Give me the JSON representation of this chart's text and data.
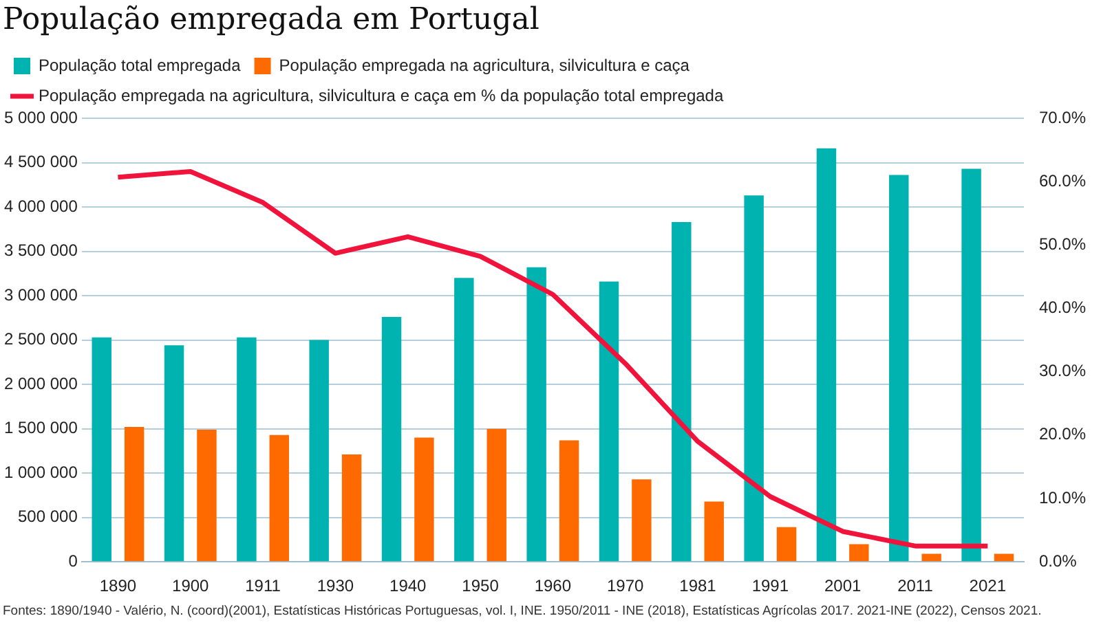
{
  "chart_data": {
    "type": "bar",
    "title": "População empregada em Portugal",
    "categories": [
      "1890",
      "1900",
      "1911",
      "1930",
      "1940",
      "1950",
      "1960",
      "1970",
      "1981",
      "1991",
      "2001",
      "2011",
      "2021"
    ],
    "series": [
      {
        "name": "População total empregada",
        "color": "#00b2b0",
        "values": [
          2530000,
          2440000,
          2530000,
          2500000,
          2760000,
          3200000,
          3320000,
          3160000,
          3830000,
          4130000,
          4660000,
          4360000,
          4430000
        ]
      },
      {
        "name": "População empregada na agricultura, silvicultura e caça",
        "color": "#ff6a00",
        "values": [
          1520000,
          1490000,
          1430000,
          1210000,
          1400000,
          1500000,
          1370000,
          930000,
          680000,
          390000,
          200000,
          90000,
          90000
        ]
      },
      {
        "name": "População empregada na agricultura, silvicultura e caça em % da população total empregada",
        "color": "#f0143c",
        "type": "line",
        "axis": "y2",
        "values": [
          60.7,
          61.6,
          56.7,
          48.7,
          51.3,
          48.2,
          42.2,
          31.3,
          19.0,
          10.3,
          4.8,
          2.5,
          2.5
        ]
      }
    ],
    "ylim": [
      0,
      5000000
    ],
    "yticks": [
      {
        "value": 0,
        "label": "0"
      },
      {
        "value": 500000,
        "label": "500 000"
      },
      {
        "value": 1000000,
        "label": "1 000 000"
      },
      {
        "value": 1500000,
        "label": "1 500 000"
      },
      {
        "value": 2000000,
        "label": "2 000 000"
      },
      {
        "value": 2500000,
        "label": "2 500 000"
      },
      {
        "value": 3000000,
        "label": "3 000 000"
      },
      {
        "value": 3500000,
        "label": "3 500 000"
      },
      {
        "value": 4000000,
        "label": "4 000 000"
      },
      {
        "value": 4500000,
        "label": "4 500 000"
      },
      {
        "value": 5000000,
        "label": "5 000 000"
      }
    ],
    "y2lim": [
      0,
      70
    ],
    "y2ticks": [
      {
        "value": 0,
        "label": "0.0%"
      },
      {
        "value": 10,
        "label": "10.0%"
      },
      {
        "value": 20,
        "label": "20.0%"
      },
      {
        "value": 30,
        "label": "30.0%"
      },
      {
        "value": 40,
        "label": "40.0%"
      },
      {
        "value": 50,
        "label": "50.0%"
      },
      {
        "value": 60,
        "label": "60.0%"
      },
      {
        "value": 70,
        "label": "70.0%"
      }
    ],
    "grid": "y",
    "legend": "top left",
    "marker": "none",
    "line_style": "solid",
    "annotations": [
      "Fontes: 1890/1940 - Valério, N. (coord)(2001), Estatísticas Históricas Portuguesas, vol. I, INE. 1950/2011 - INE (2018), Estatísticas Agrícolas 2017. 2021-INE (2022), Censos 2021."
    ]
  }
}
